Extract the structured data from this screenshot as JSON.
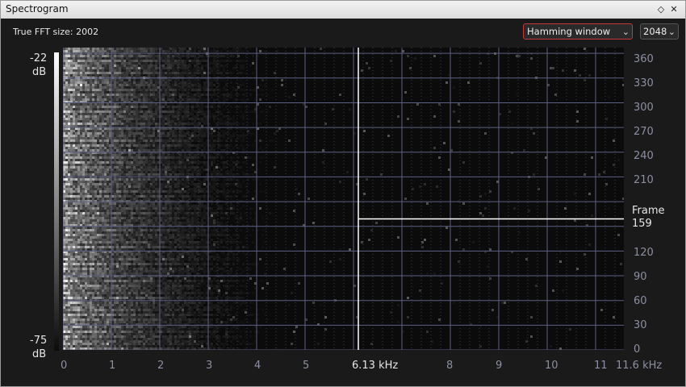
{
  "window": {
    "title": "Spectrogram",
    "pin_glyph": "◇",
    "close_glyph": "✕"
  },
  "header": {
    "fft_label": "True FFT size: 2002",
    "window_select": "Hamming window",
    "fft_size_select": "2048",
    "chevron_glyph": "⌄"
  },
  "colorbar": {
    "top_value": "-22",
    "top_unit": "dB",
    "bottom_value": "-75",
    "bottom_unit": "dB"
  },
  "y_axis": {
    "title": "Frame",
    "ticks": [
      "360",
      "330",
      "300",
      "270",
      "240",
      "210",
      "120",
      "90",
      "60",
      "30",
      "0"
    ],
    "cursor_value": "159"
  },
  "x_axis": {
    "ticks": [
      "0",
      "1",
      "2",
      "3",
      "4",
      "5",
      "8",
      "9",
      "10",
      "11"
    ],
    "cursor_label": "6.13 kHz",
    "max_label": "11.6 kHz"
  },
  "colors": {
    "grid": "#5c5f80",
    "cursor": "#ffffff",
    "select_border": "#c03a3a"
  }
}
